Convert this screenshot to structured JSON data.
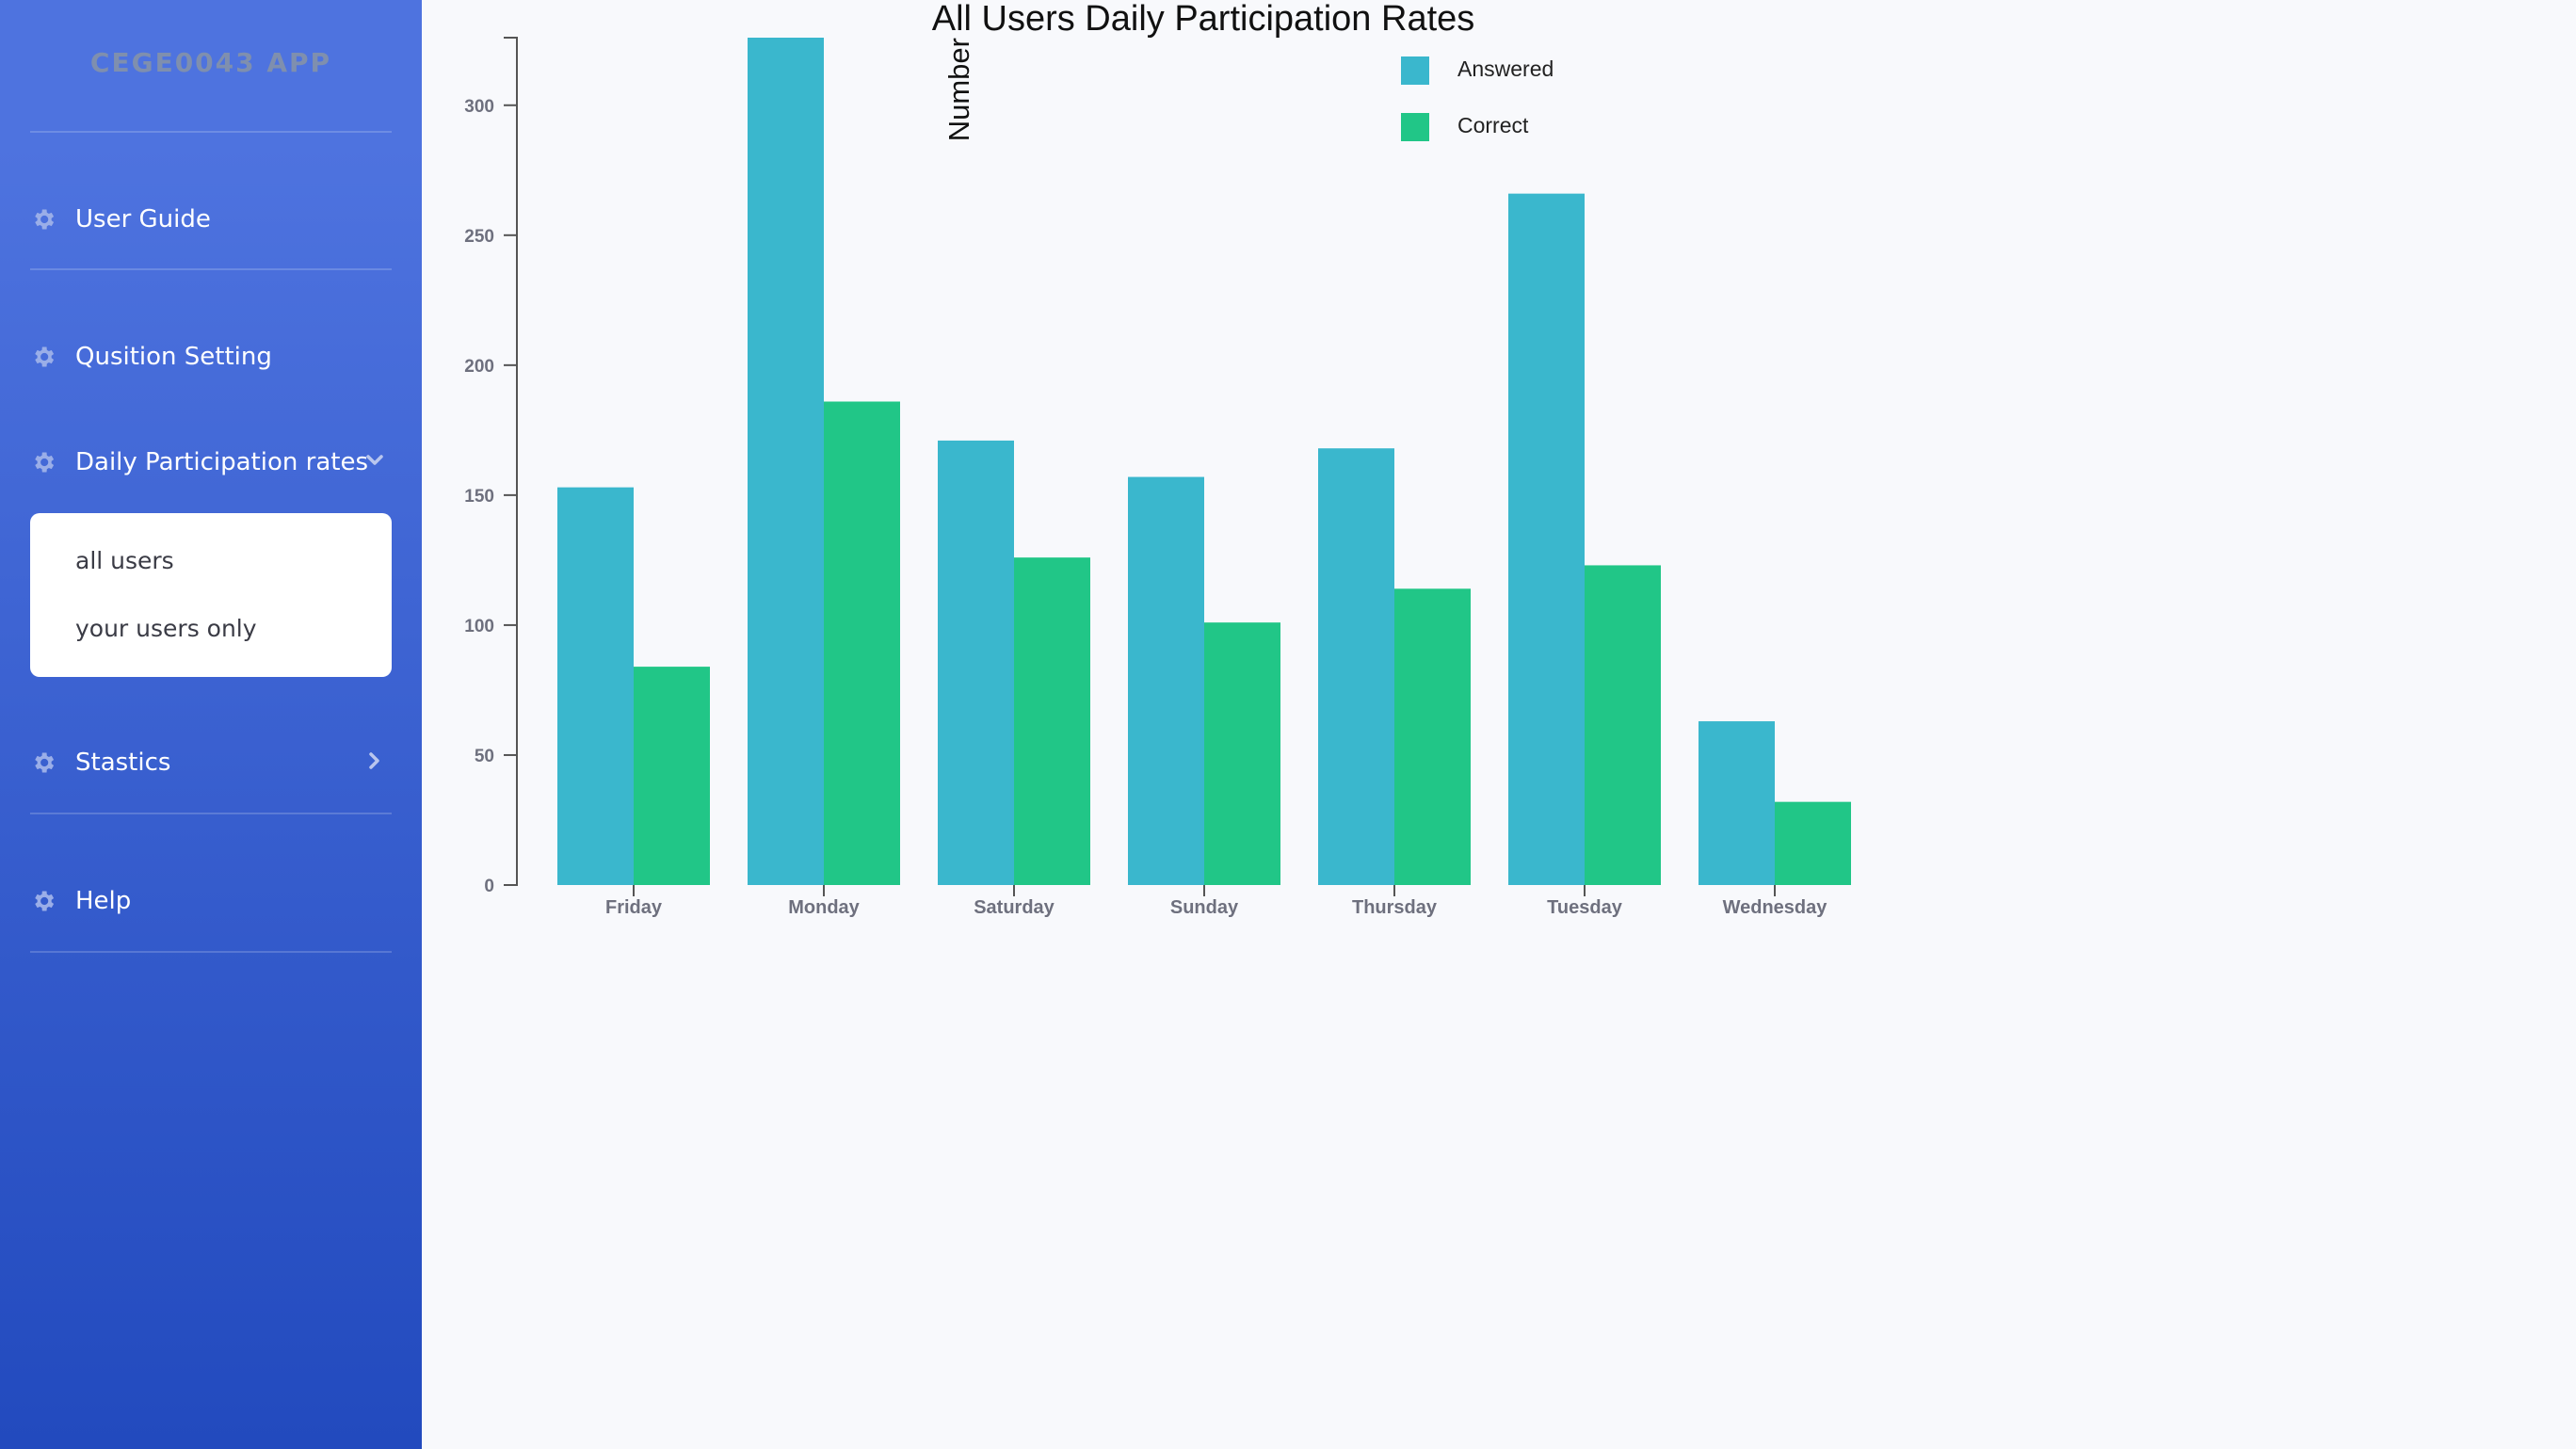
{
  "sidebar": {
    "brand": "CEGE0043 APP",
    "items": [
      {
        "label": "User Guide"
      },
      {
        "label": "Qusition Setting"
      },
      {
        "label": "Daily Participation rates"
      },
      {
        "label": "Stastics"
      },
      {
        "label": "Help"
      }
    ],
    "submenu": [
      {
        "label": "all users"
      },
      {
        "label": "your users only"
      }
    ]
  },
  "colors": {
    "answered": "#3ab7cd",
    "correct": "#21c687",
    "icon": "#9aaee8"
  },
  "chart_data": {
    "type": "bar",
    "title": "All Users Daily Participation Rates",
    "ylabel": "Number",
    "xlabel": "",
    "ylim": [
      0,
      326
    ],
    "yticks": [
      0,
      50,
      100,
      150,
      200,
      250,
      300
    ],
    "categories": [
      "Friday",
      "Monday",
      "Saturday",
      "Sunday",
      "Thursday",
      "Tuesday",
      "Wednesday"
    ],
    "series": [
      {
        "name": "Answered",
        "values": [
          153,
          326,
          171,
          157,
          168,
          266,
          63
        ]
      },
      {
        "name": "Correct",
        "values": [
          84,
          186,
          126,
          101,
          114,
          123,
          32
        ]
      }
    ],
    "legend": "top-right",
    "grid": false
  }
}
